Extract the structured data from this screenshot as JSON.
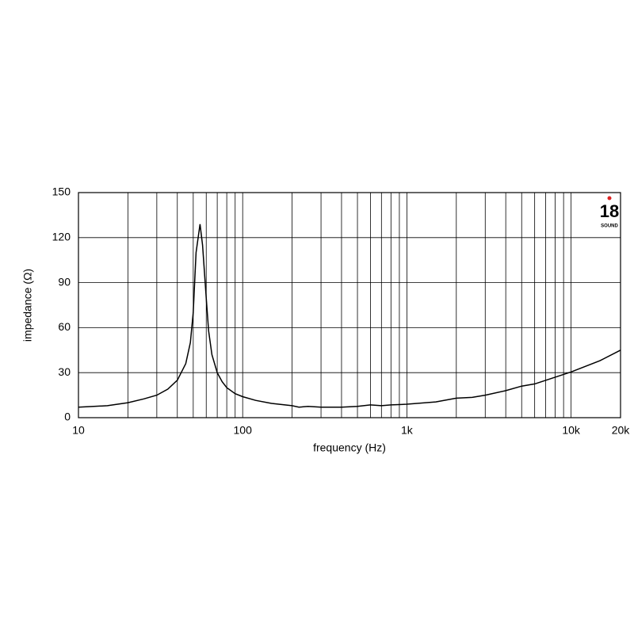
{
  "chart_data": {
    "type": "line",
    "xlabel": "frequency (Hz)",
    "ylabel": "impedance (Ω)",
    "xscale": "log",
    "grid": true,
    "xlim": [
      10,
      20000
    ],
    "ylim": [
      0,
      150
    ],
    "xticks": [
      10,
      100,
      {
        "value": 1000,
        "label": "1k"
      },
      {
        "value": 10000,
        "label": "10k"
      },
      {
        "value": 20000,
        "label": "20k"
      }
    ],
    "xminorticks": [
      20,
      30,
      40,
      50,
      60,
      70,
      80,
      90,
      200,
      300,
      400,
      500,
      600,
      700,
      800,
      900,
      2000,
      3000,
      4000,
      5000,
      6000,
      7000,
      8000,
      9000
    ],
    "yticks": [
      0,
      30,
      60,
      90,
      120,
      150
    ],
    "logo": {
      "number": "18",
      "name": "SOUND"
    },
    "series": [
      {
        "color": "#000000",
        "x": [
          10,
          15,
          20,
          25,
          30,
          35,
          40,
          45,
          48,
          50,
          52,
          55,
          57,
          60,
          62,
          65,
          70,
          75,
          80,
          90,
          100,
          120,
          150,
          200,
          220,
          250,
          300,
          400,
          500,
          600,
          700,
          800,
          1000,
          1500,
          2000,
          2500,
          3000,
          4000,
          5000,
          6000,
          8000,
          10000,
          15000,
          20000
        ],
        "values": [
          7,
          8,
          10,
          12.5,
          15,
          19,
          25,
          36,
          50,
          70,
          110,
          129,
          115,
          80,
          58,
          42,
          30,
          24,
          20,
          16,
          14,
          11.5,
          9.5,
          8,
          7,
          7.5,
          7,
          7,
          7.5,
          8.5,
          8,
          8.5,
          9,
          10.5,
          13,
          13.5,
          15,
          18,
          21,
          22.5,
          27,
          30.5,
          38,
          45
        ]
      }
    ]
  }
}
